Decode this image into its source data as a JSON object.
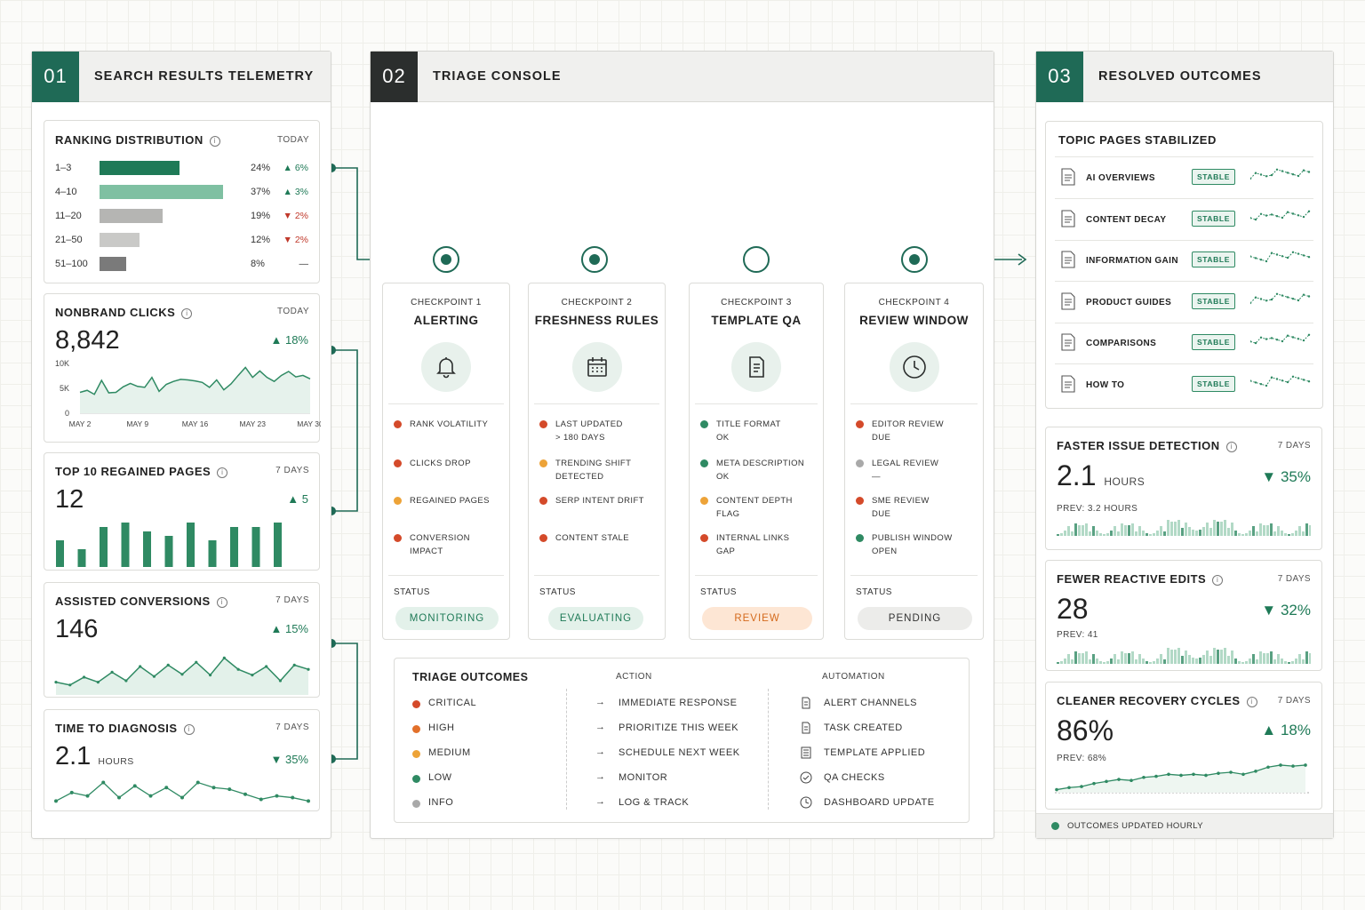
{
  "colors": {
    "accent": "#1f6a56",
    "dark": "#2b2e2d",
    "critical": "#d44a2a",
    "high": "#e2702a",
    "medium": "#eda338",
    "low": "#2f8a63",
    "info": "#a9a9a9"
  },
  "panel1": {
    "num": "01",
    "title": "SEARCH RESULTS TELEMETRY",
    "ranking": {
      "title": "RANKING DISTRIBUTION",
      "meta": "TODAY",
      "rows": [
        {
          "label": "1–3",
          "pct": "24%",
          "change": "6%",
          "dir": "up",
          "share": 24
        },
        {
          "label": "4–10",
          "pct": "37%",
          "change": "3%",
          "dir": "up",
          "share": 37
        },
        {
          "label": "11–20",
          "pct": "19%",
          "change": "2%",
          "dir": "down",
          "share": 19
        },
        {
          "label": "21–50",
          "pct": "12%",
          "change": "2%",
          "dir": "down",
          "share": 12
        },
        {
          "label": "51–100",
          "pct": "8%",
          "change": "—",
          "dir": "flat",
          "share": 8
        }
      ]
    },
    "clicks": {
      "title": "NONBRAND CLICKS",
      "meta": "TODAY",
      "value": "8,842",
      "change": "18%",
      "yticks": [
        "10K",
        "5K",
        "0"
      ],
      "xticks": [
        "MAY 2",
        "MAY 9",
        "MAY 16",
        "MAY 23",
        "MAY 30"
      ],
      "series": [
        4200,
        4600,
        3800,
        6600,
        4100,
        4200,
        5300,
        6000,
        5400,
        5200,
        7200,
        4400,
        5800,
        6400,
        6800,
        6700,
        6500,
        6200,
        5200,
        6700,
        4700,
        5900,
        7600,
        9200,
        7200,
        8500,
        7200,
        6400,
        7600,
        8400,
        7300,
        7600,
        6900
      ]
    },
    "regained": {
      "title": "TOP 10 REGAINED PAGES",
      "meta": "7 DAYS",
      "value": "12",
      "change": "5",
      "bars": [
        6,
        4,
        9,
        10,
        8,
        7,
        10,
        6,
        9,
        9,
        10
      ]
    },
    "assisted": {
      "title": "ASSISTED CONVERSIONS",
      "meta": "7 DAYS",
      "value": "146",
      "change": "15%",
      "series": [
        118,
        114,
        125,
        118,
        132,
        120,
        140,
        126,
        142,
        129,
        146,
        128,
        152,
        136,
        128,
        140,
        120,
        142,
        136
      ]
    },
    "diagnosis": {
      "title": "TIME TO DIAGNOSIS",
      "meta": "7 DAYS",
      "value": "2.1",
      "unit": "HOURS",
      "change": "35%",
      "series": [
        2.3,
        2.8,
        2.6,
        3.4,
        2.5,
        3.2,
        2.6,
        3.1,
        2.5,
        3.4,
        3.1,
        3.0,
        2.7,
        2.4,
        2.6,
        2.5,
        2.3
      ]
    }
  },
  "panel2": {
    "num": "02",
    "title": "TRIAGE CONSOLE",
    "checkpoints": [
      {
        "label": "CHECKPOINT 1",
        "name": "ALERTING",
        "icon": "bell-icon",
        "items": [
          {
            "text": "RANK VOLATILITY",
            "level": "critical"
          },
          {
            "text": "CLICKS DROP",
            "level": "critical"
          },
          {
            "text": "REGAINED PAGES",
            "level": "medium"
          },
          {
            "text": "CONVERSION IMPACT",
            "level": "critical"
          }
        ],
        "status_label": "STATUS",
        "status": "MONITORING"
      },
      {
        "label": "CHECKPOINT 2",
        "name": "FRESHNESS RULES",
        "icon": "calendar-icon",
        "items": [
          {
            "text": "LAST UPDATED\n> 180 DAYS",
            "level": "critical"
          },
          {
            "text": "TRENDING SHIFT\nDETECTED",
            "level": "medium"
          },
          {
            "text": "SERP INTENT DRIFT",
            "level": "critical"
          },
          {
            "text": "CONTENT STALE",
            "level": "critical"
          }
        ],
        "status_label": "STATUS",
        "status": "EVALUATING"
      },
      {
        "label": "CHECKPOINT 3",
        "name": "TEMPLATE QA",
        "icon": "document-icon",
        "items": [
          {
            "text": "TITLE FORMAT\nOK",
            "level": "low"
          },
          {
            "text": "META DESCRIPTION\nOK",
            "level": "low"
          },
          {
            "text": "CONTENT DEPTH\nFLAG",
            "level": "medium"
          },
          {
            "text": "INTERNAL LINKS\nGAP",
            "level": "critical"
          }
        ],
        "status_label": "STATUS",
        "status": "REVIEW"
      },
      {
        "label": "CHECKPOINT 4",
        "name": "REVIEW WINDOW",
        "icon": "clock-icon",
        "items": [
          {
            "text": "EDITOR REVIEW\nDUE",
            "level": "critical"
          },
          {
            "text": "LEGAL REVIEW\n—",
            "level": "info"
          },
          {
            "text": "SME REVIEW\nDUE",
            "level": "critical"
          },
          {
            "text": "PUBLISH WINDOW\nOPEN",
            "level": "low"
          }
        ],
        "status_label": "STATUS",
        "status": "PENDING"
      }
    ],
    "outcomes": {
      "title": "TRIAGE OUTCOMES",
      "action_header": "ACTION",
      "automation_header": "AUTOMATION",
      "rows": [
        {
          "level": "CRITICAL",
          "key": "critical",
          "action": "IMMEDIATE RESPONSE",
          "automation": "ALERT CHANNELS",
          "auto_icon": "doc-icon"
        },
        {
          "level": "HIGH",
          "key": "high",
          "action": "PRIORITIZE THIS WEEK",
          "automation": "TASK CREATED",
          "auto_icon": "doc-icon"
        },
        {
          "level": "MEDIUM",
          "key": "medium",
          "action": "SCHEDULE NEXT WEEK",
          "automation": "TEMPLATE APPLIED",
          "auto_icon": "list-icon"
        },
        {
          "level": "LOW",
          "key": "low",
          "action": "MONITOR",
          "automation": "QA CHECKS",
          "auto_icon": "check-icon"
        },
        {
          "level": "INFO",
          "key": "info",
          "action": "LOG & TRACK",
          "automation": "DASHBOARD UPDATE",
          "auto_icon": "clock-icon"
        }
      ]
    }
  },
  "panel3": {
    "num": "03",
    "title": "RESOLVED OUTCOMES",
    "topics": {
      "title": "TOPIC PAGES STABILIZED",
      "badge": "STABLE",
      "items": [
        "AI OVERVIEWS",
        "CONTENT DECAY",
        "INFORMATION GAIN",
        "PRODUCT GUIDES",
        "COMPARISONS",
        "HOW TO"
      ]
    },
    "faster": {
      "title": "FASTER ISSUE DETECTION",
      "meta": "7 DAYS",
      "value": "2.1",
      "unit": "HOURS",
      "change": "35%",
      "prev": "PREV: 3.2 HOURS"
    },
    "fewer": {
      "title": "FEWER REACTIVE EDITS",
      "meta": "7 DAYS",
      "value": "28",
      "change": "32%",
      "prev": "PREV: 41"
    },
    "cleaner": {
      "title": "CLEANER RECOVERY CYCLES",
      "meta": "7 DAYS",
      "value": "86%",
      "change": "18%",
      "prev": "PREV: 68%"
    },
    "footer": "OUTCOMES UPDATED HOURLY"
  }
}
